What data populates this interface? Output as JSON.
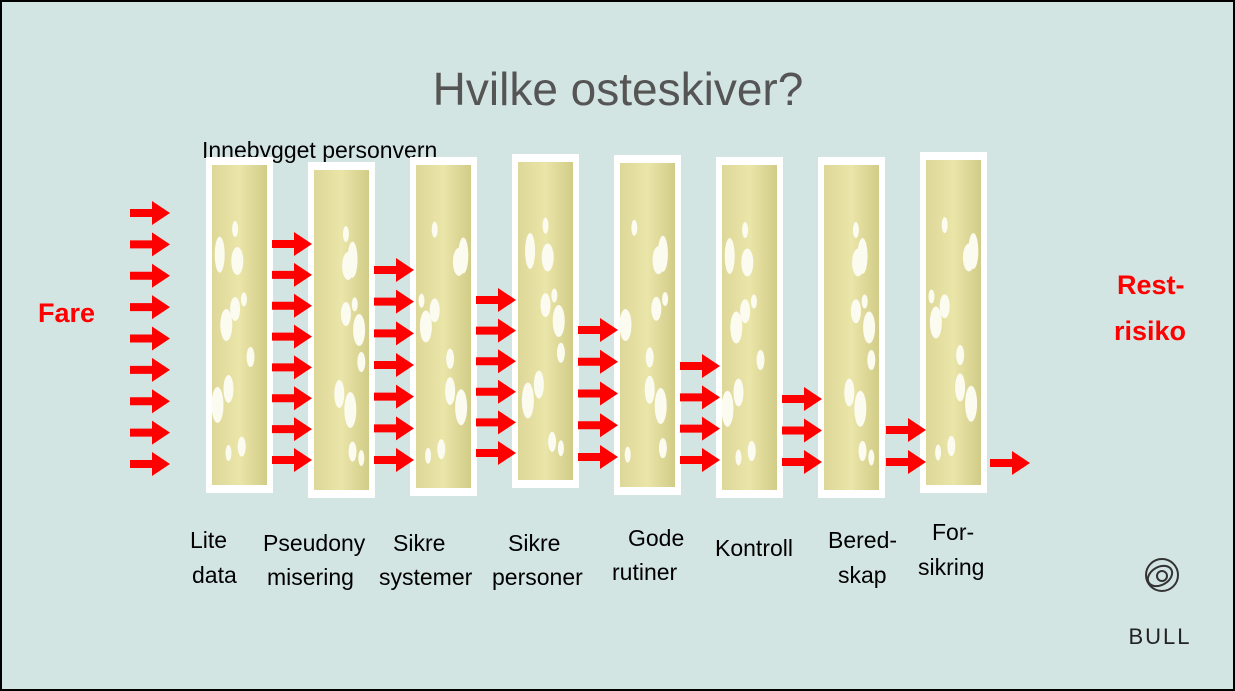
{
  "title": "Hvilke osteskiver?",
  "subtitle": "Innebygget personvern",
  "source_label": "Fare",
  "result_label": [
    "Rest-",
    "risiko"
  ],
  "layers": [
    {
      "lines": [
        "Lite",
        "data"
      ]
    },
    {
      "lines": [
        "Pseudony",
        "misering"
      ]
    },
    {
      "lines": [
        "Sikre",
        "systemer"
      ]
    },
    {
      "lines": [
        "Sikre",
        "personer"
      ]
    },
    {
      "lines": [
        "Gode",
        "rutiner"
      ]
    },
    {
      "lines": [
        "Kontroll"
      ]
    },
    {
      "lines": [
        "Bered-",
        "skap"
      ]
    },
    {
      "lines": [
        "For-",
        "sikring"
      ]
    }
  ],
  "logo": "BULL"
}
